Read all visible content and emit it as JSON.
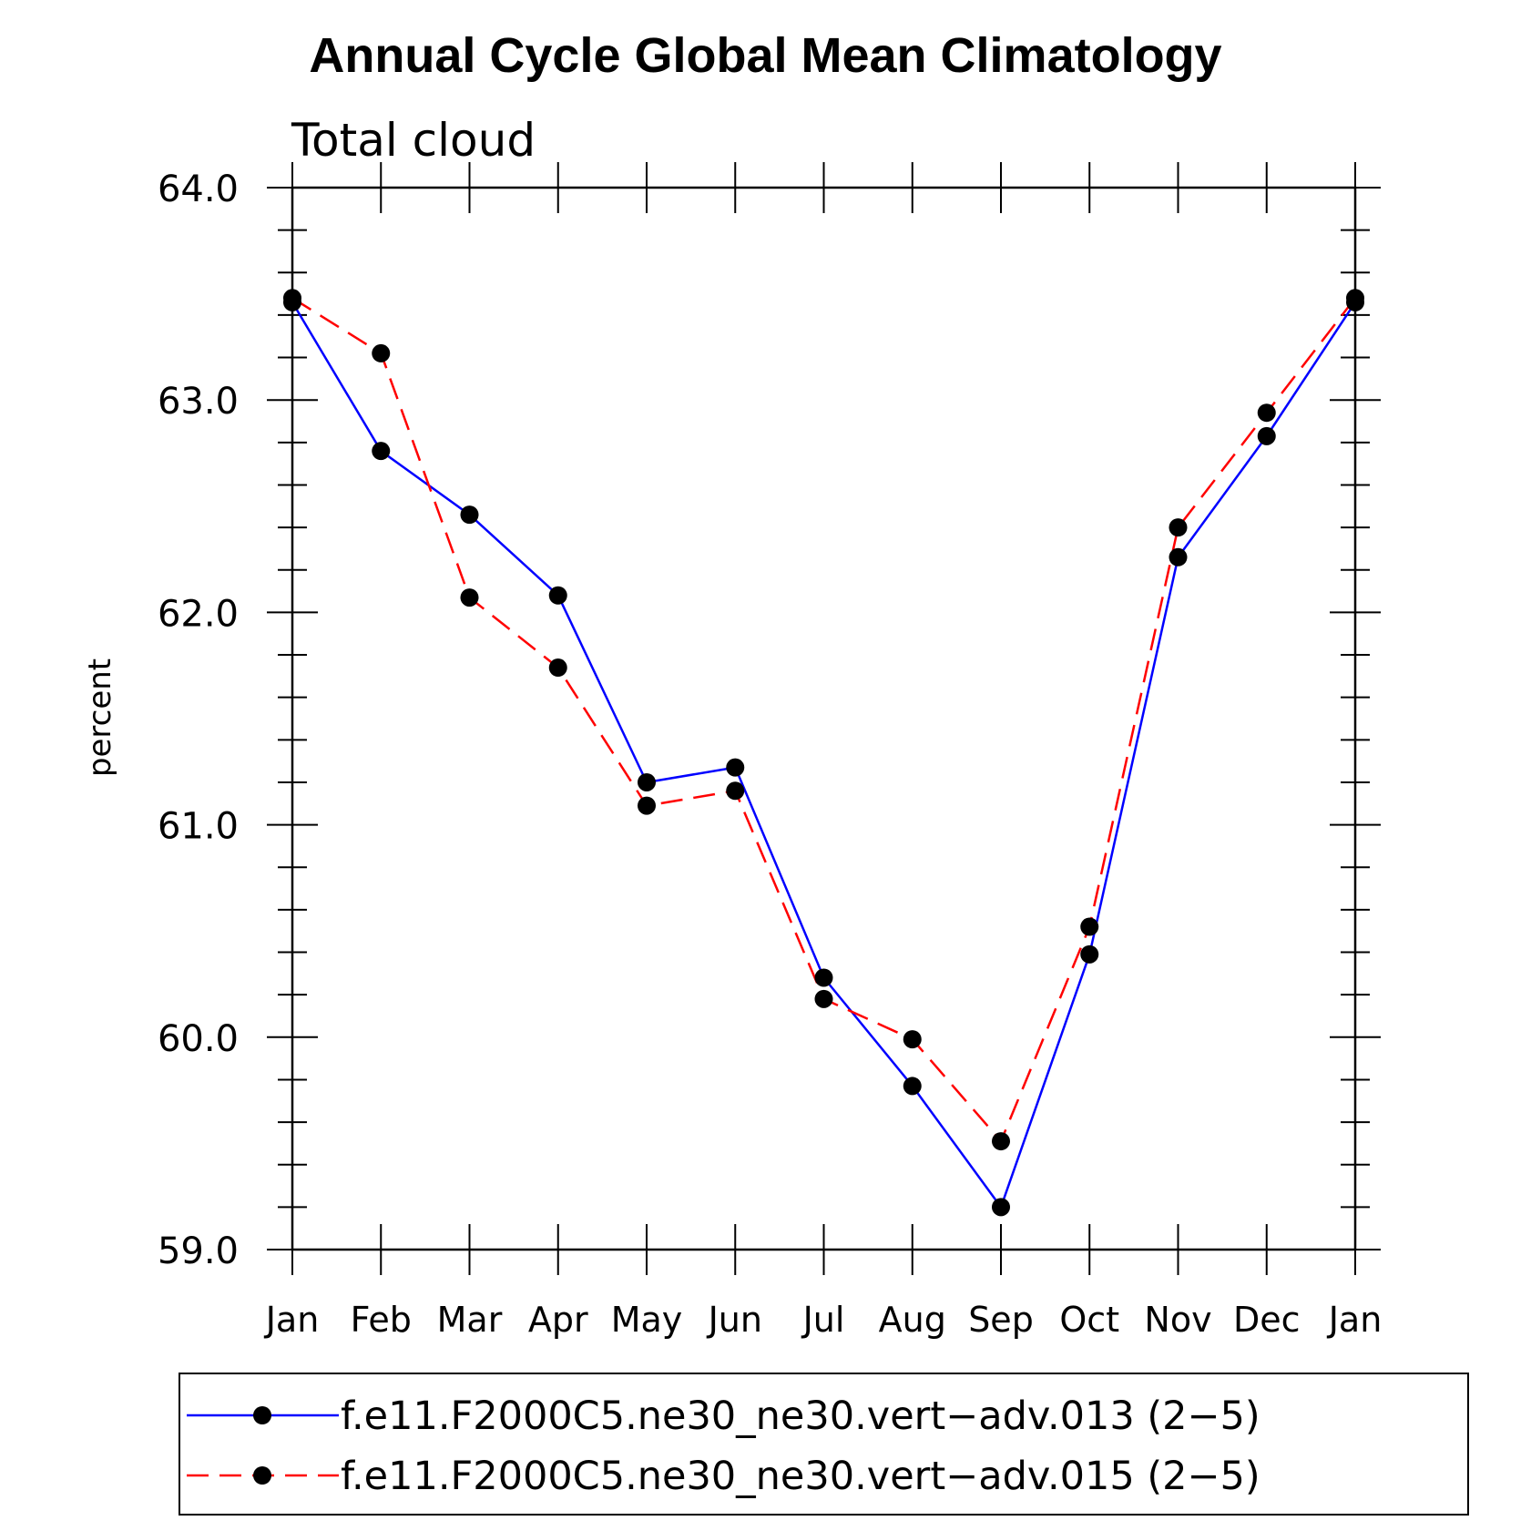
{
  "chart_data": {
    "type": "line",
    "title": "Annual Cycle Global Mean Climatology",
    "subtitle": "Total cloud",
    "xlabel": "",
    "ylabel": "percent",
    "ylim": [
      59.0,
      64.0
    ],
    "yticks": [
      "59.0",
      "60.0",
      "61.0",
      "62.0",
      "63.0",
      "64.0"
    ],
    "categories": [
      "Jan",
      "Feb",
      "Mar",
      "Apr",
      "May",
      "Jun",
      "Jul",
      "Aug",
      "Sep",
      "Oct",
      "Nov",
      "Dec",
      "Jan"
    ],
    "series": [
      {
        "name": "f.e11.F2000C5.ne30_ne30.vert−adv.013 (2−5)",
        "color": "#0000ff",
        "dash": "solid",
        "values": [
          63.46,
          62.76,
          62.46,
          62.08,
          61.2,
          61.27,
          60.28,
          59.77,
          59.2,
          60.39,
          62.26,
          62.83,
          63.46
        ]
      },
      {
        "name": "f.e11.F2000C5.ne30_ne30.vert−adv.015 (2−5)",
        "color": "#ff0000",
        "dash": "dashed",
        "values": [
          63.48,
          63.22,
          62.07,
          61.74,
          61.09,
          61.16,
          60.18,
          59.99,
          59.51,
          60.52,
          62.4,
          62.94,
          63.48
        ]
      }
    ],
    "marker": "filled-circle",
    "legend_position": "bottom",
    "grid": false
  }
}
